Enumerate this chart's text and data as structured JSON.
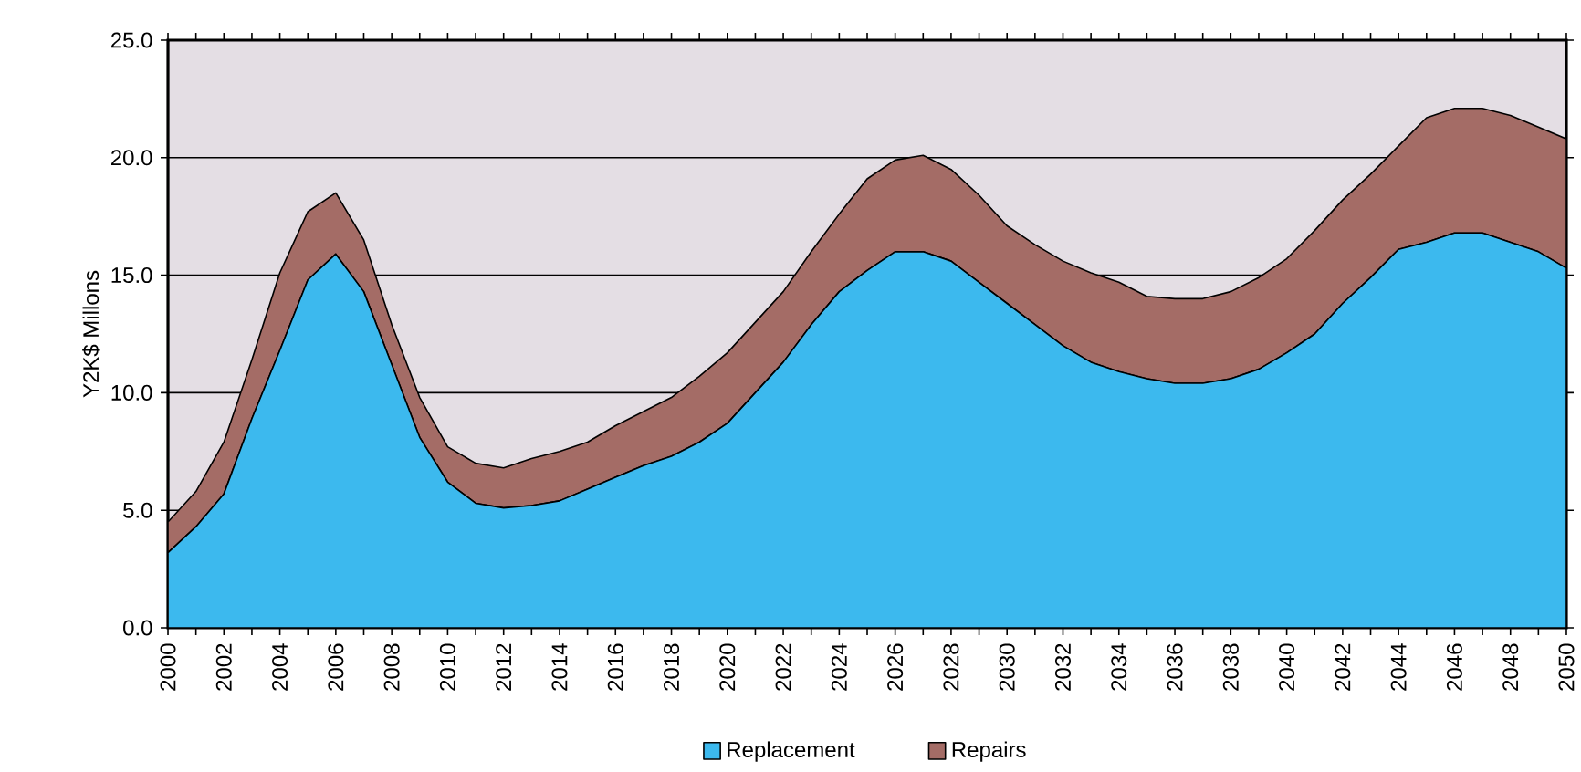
{
  "chart_data": {
    "type": "area",
    "stacked": true,
    "ylabel": "Y2K$ Millons",
    "x": [
      2000,
      2001,
      2002,
      2003,
      2004,
      2005,
      2006,
      2007,
      2008,
      2009,
      2010,
      2011,
      2012,
      2013,
      2014,
      2015,
      2016,
      2017,
      2018,
      2019,
      2020,
      2021,
      2022,
      2023,
      2024,
      2025,
      2026,
      2027,
      2028,
      2029,
      2030,
      2031,
      2032,
      2033,
      2034,
      2035,
      2036,
      2037,
      2038,
      2039,
      2040,
      2041,
      2042,
      2043,
      2044,
      2045,
      2046,
      2047,
      2048,
      2049,
      2050
    ],
    "series": [
      {
        "name": "Replacement",
        "color": "#3cb9ee",
        "values": [
          3.2,
          4.3,
          5.7,
          8.9,
          11.8,
          14.8,
          15.9,
          14.3,
          11.2,
          8.1,
          6.2,
          5.3,
          5.1,
          5.2,
          5.4,
          5.9,
          6.4,
          6.9,
          7.3,
          7.9,
          8.7,
          10.0,
          11.3,
          12.9,
          14.3,
          15.2,
          16.0,
          16.0,
          15.6,
          14.7,
          13.8,
          12.9,
          12.0,
          11.3,
          10.9,
          10.6,
          10.4,
          10.4,
          10.6,
          11.0,
          11.7,
          12.5,
          13.8,
          14.9,
          16.1,
          16.4,
          16.8,
          16.8,
          16.4,
          16.0,
          15.3
        ]
      },
      {
        "name": "Repairs",
        "color": "#a46c66",
        "values": [
          1.3,
          1.5,
          2.2,
          2.5,
          3.3,
          2.9,
          2.6,
          2.2,
          1.7,
          1.7,
          1.5,
          1.7,
          1.7,
          2.0,
          2.1,
          2.0,
          2.2,
          2.3,
          2.5,
          2.8,
          3.0,
          3.0,
          3.0,
          3.1,
          3.3,
          3.9,
          3.9,
          4.1,
          3.9,
          3.7,
          3.3,
          3.4,
          3.6,
          3.8,
          3.8,
          3.5,
          3.6,
          3.6,
          3.7,
          3.9,
          4.0,
          4.4,
          4.4,
          4.4,
          4.4,
          5.3,
          5.3,
          5.3,
          5.4,
          5.3,
          5.5
        ]
      }
    ],
    "xlim": [
      2000,
      2050
    ],
    "xticks": [
      {
        "value": 2000,
        "label": "2000"
      },
      {
        "value": 2001,
        "label": null
      },
      {
        "value": 2002,
        "label": "2002"
      },
      {
        "value": 2003,
        "label": null
      },
      {
        "value": 2004,
        "label": "2004"
      },
      {
        "value": 2005,
        "label": null
      },
      {
        "value": 2006,
        "label": "2006"
      },
      {
        "value": 2007,
        "label": null
      },
      {
        "value": 2008,
        "label": "2008"
      },
      {
        "value": 2009,
        "label": null
      },
      {
        "value": 2010,
        "label": "2010"
      },
      {
        "value": 2011,
        "label": null
      },
      {
        "value": 2012,
        "label": "2012"
      },
      {
        "value": 2013,
        "label": null
      },
      {
        "value": 2014,
        "label": "2014"
      },
      {
        "value": 2015,
        "label": null
      },
      {
        "value": 2016,
        "label": "2016"
      },
      {
        "value": 2017,
        "label": null
      },
      {
        "value": 2018,
        "label": "2018"
      },
      {
        "value": 2019,
        "label": null
      },
      {
        "value": 2020,
        "label": "2020"
      },
      {
        "value": 2021,
        "label": null
      },
      {
        "value": 2022,
        "label": "2022"
      },
      {
        "value": 2023,
        "label": null
      },
      {
        "value": 2024,
        "label": "2024"
      },
      {
        "value": 2025,
        "label": null
      },
      {
        "value": 2026,
        "label": "2026"
      },
      {
        "value": 2027,
        "label": null
      },
      {
        "value": 2028,
        "label": "2028"
      },
      {
        "value": 2029,
        "label": null
      },
      {
        "value": 2030,
        "label": "2030"
      },
      {
        "value": 2031,
        "label": null
      },
      {
        "value": 2032,
        "label": "2032"
      },
      {
        "value": 2033,
        "label": null
      },
      {
        "value": 2034,
        "label": "2034"
      },
      {
        "value": 2035,
        "label": null
      },
      {
        "value": 2036,
        "label": "2036"
      },
      {
        "value": 2037,
        "label": null
      },
      {
        "value": 2038,
        "label": "2038"
      },
      {
        "value": 2039,
        "label": null
      },
      {
        "value": 2040,
        "label": "2040"
      },
      {
        "value": 2041,
        "label": null
      },
      {
        "value": 2042,
        "label": "2042"
      },
      {
        "value": 2043,
        "label": null
      },
      {
        "value": 2044,
        "label": "2044"
      },
      {
        "value": 2045,
        "label": null
      },
      {
        "value": 2046,
        "label": "2046"
      },
      {
        "value": 2047,
        "label": null
      },
      {
        "value": 2048,
        "label": "2048"
      },
      {
        "value": 2049,
        "label": null
      },
      {
        "value": 2050,
        "label": "2050"
      }
    ],
    "ylim": [
      0,
      25
    ],
    "yticks": [
      {
        "value": 0,
        "label": "0.0"
      },
      {
        "value": 5,
        "label": "5.0"
      },
      {
        "value": 10,
        "label": "10.0"
      },
      {
        "value": 15,
        "label": "15.0"
      },
      {
        "value": 20,
        "label": "20.0"
      },
      {
        "value": 25,
        "label": "25.0"
      }
    ],
    "grid": "y",
    "legend": "bottom"
  }
}
